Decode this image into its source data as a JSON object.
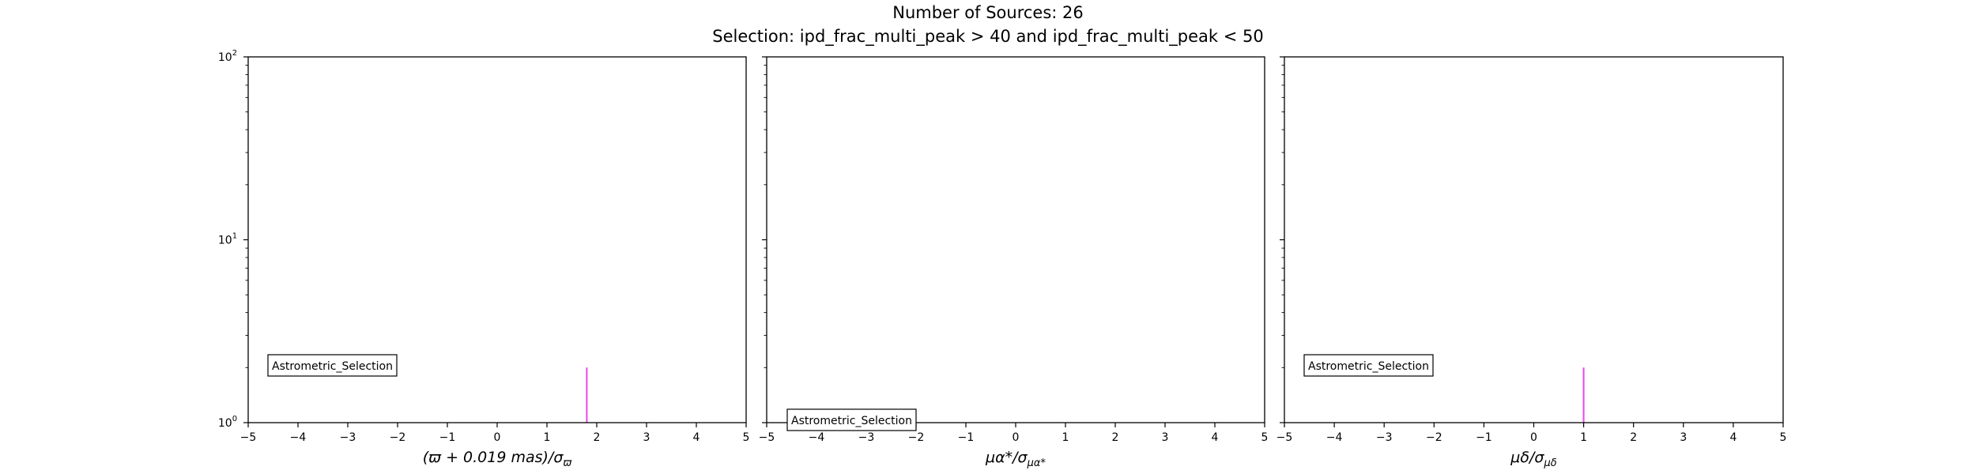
{
  "figure": {
    "title": "Number of Sources: 26",
    "subtitle": "Selection: ipd_frac_multi_peak > 40 and ipd_frac_multi_peak < 50",
    "bar_color": "#ee44ee"
  },
  "chart_data": [
    {
      "type": "bar",
      "xlim": [
        -5,
        5
      ],
      "ylim": [
        1,
        100
      ],
      "yscale": "log",
      "xticks": [
        -5,
        -4,
        -3,
        -2,
        -1,
        0,
        1,
        2,
        3,
        4,
        5
      ],
      "yticks": [
        1,
        10,
        100
      ],
      "ytick_labels": [
        {
          "base": "10",
          "exp": "0"
        },
        {
          "base": "10",
          "exp": "1"
        },
        {
          "base": "10",
          "exp": "2"
        }
      ],
      "xlabel_parts": {
        "main": "(ϖ + 0.019 mas)/σ",
        "sub": "ϖ"
      },
      "legend": "Astrometric_Selection",
      "legend_position": "lower-left",
      "bars": [
        {
          "x": 1.8,
          "value": 2
        }
      ]
    },
    {
      "type": "bar",
      "xlim": [
        -5,
        5
      ],
      "ylim": [
        1,
        100
      ],
      "yscale": "log",
      "xticks": [
        -5,
        -4,
        -3,
        -2,
        -1,
        0,
        1,
        2,
        3,
        4,
        5
      ],
      "yticks": [
        1,
        10,
        100
      ],
      "ytick_labels": [],
      "xlabel_parts": {
        "main": "μα*/σ",
        "sub": "μα*"
      },
      "legend": "Astrometric_Selection",
      "legend_position": "lower-left",
      "bars": []
    },
    {
      "type": "bar",
      "xlim": [
        -5,
        5
      ],
      "ylim": [
        1,
        100
      ],
      "yscale": "log",
      "xticks": [
        -5,
        -4,
        -3,
        -2,
        -1,
        0,
        1,
        2,
        3,
        4,
        5
      ],
      "yticks": [
        1,
        10,
        100
      ],
      "ytick_labels": [],
      "xlabel_parts": {
        "main": "μδ/σ",
        "sub": "μδ"
      },
      "legend": "Astrometric_Selection",
      "legend_position": "lower-left",
      "bars": [
        {
          "x": 1.0,
          "value": 2
        }
      ]
    }
  ]
}
